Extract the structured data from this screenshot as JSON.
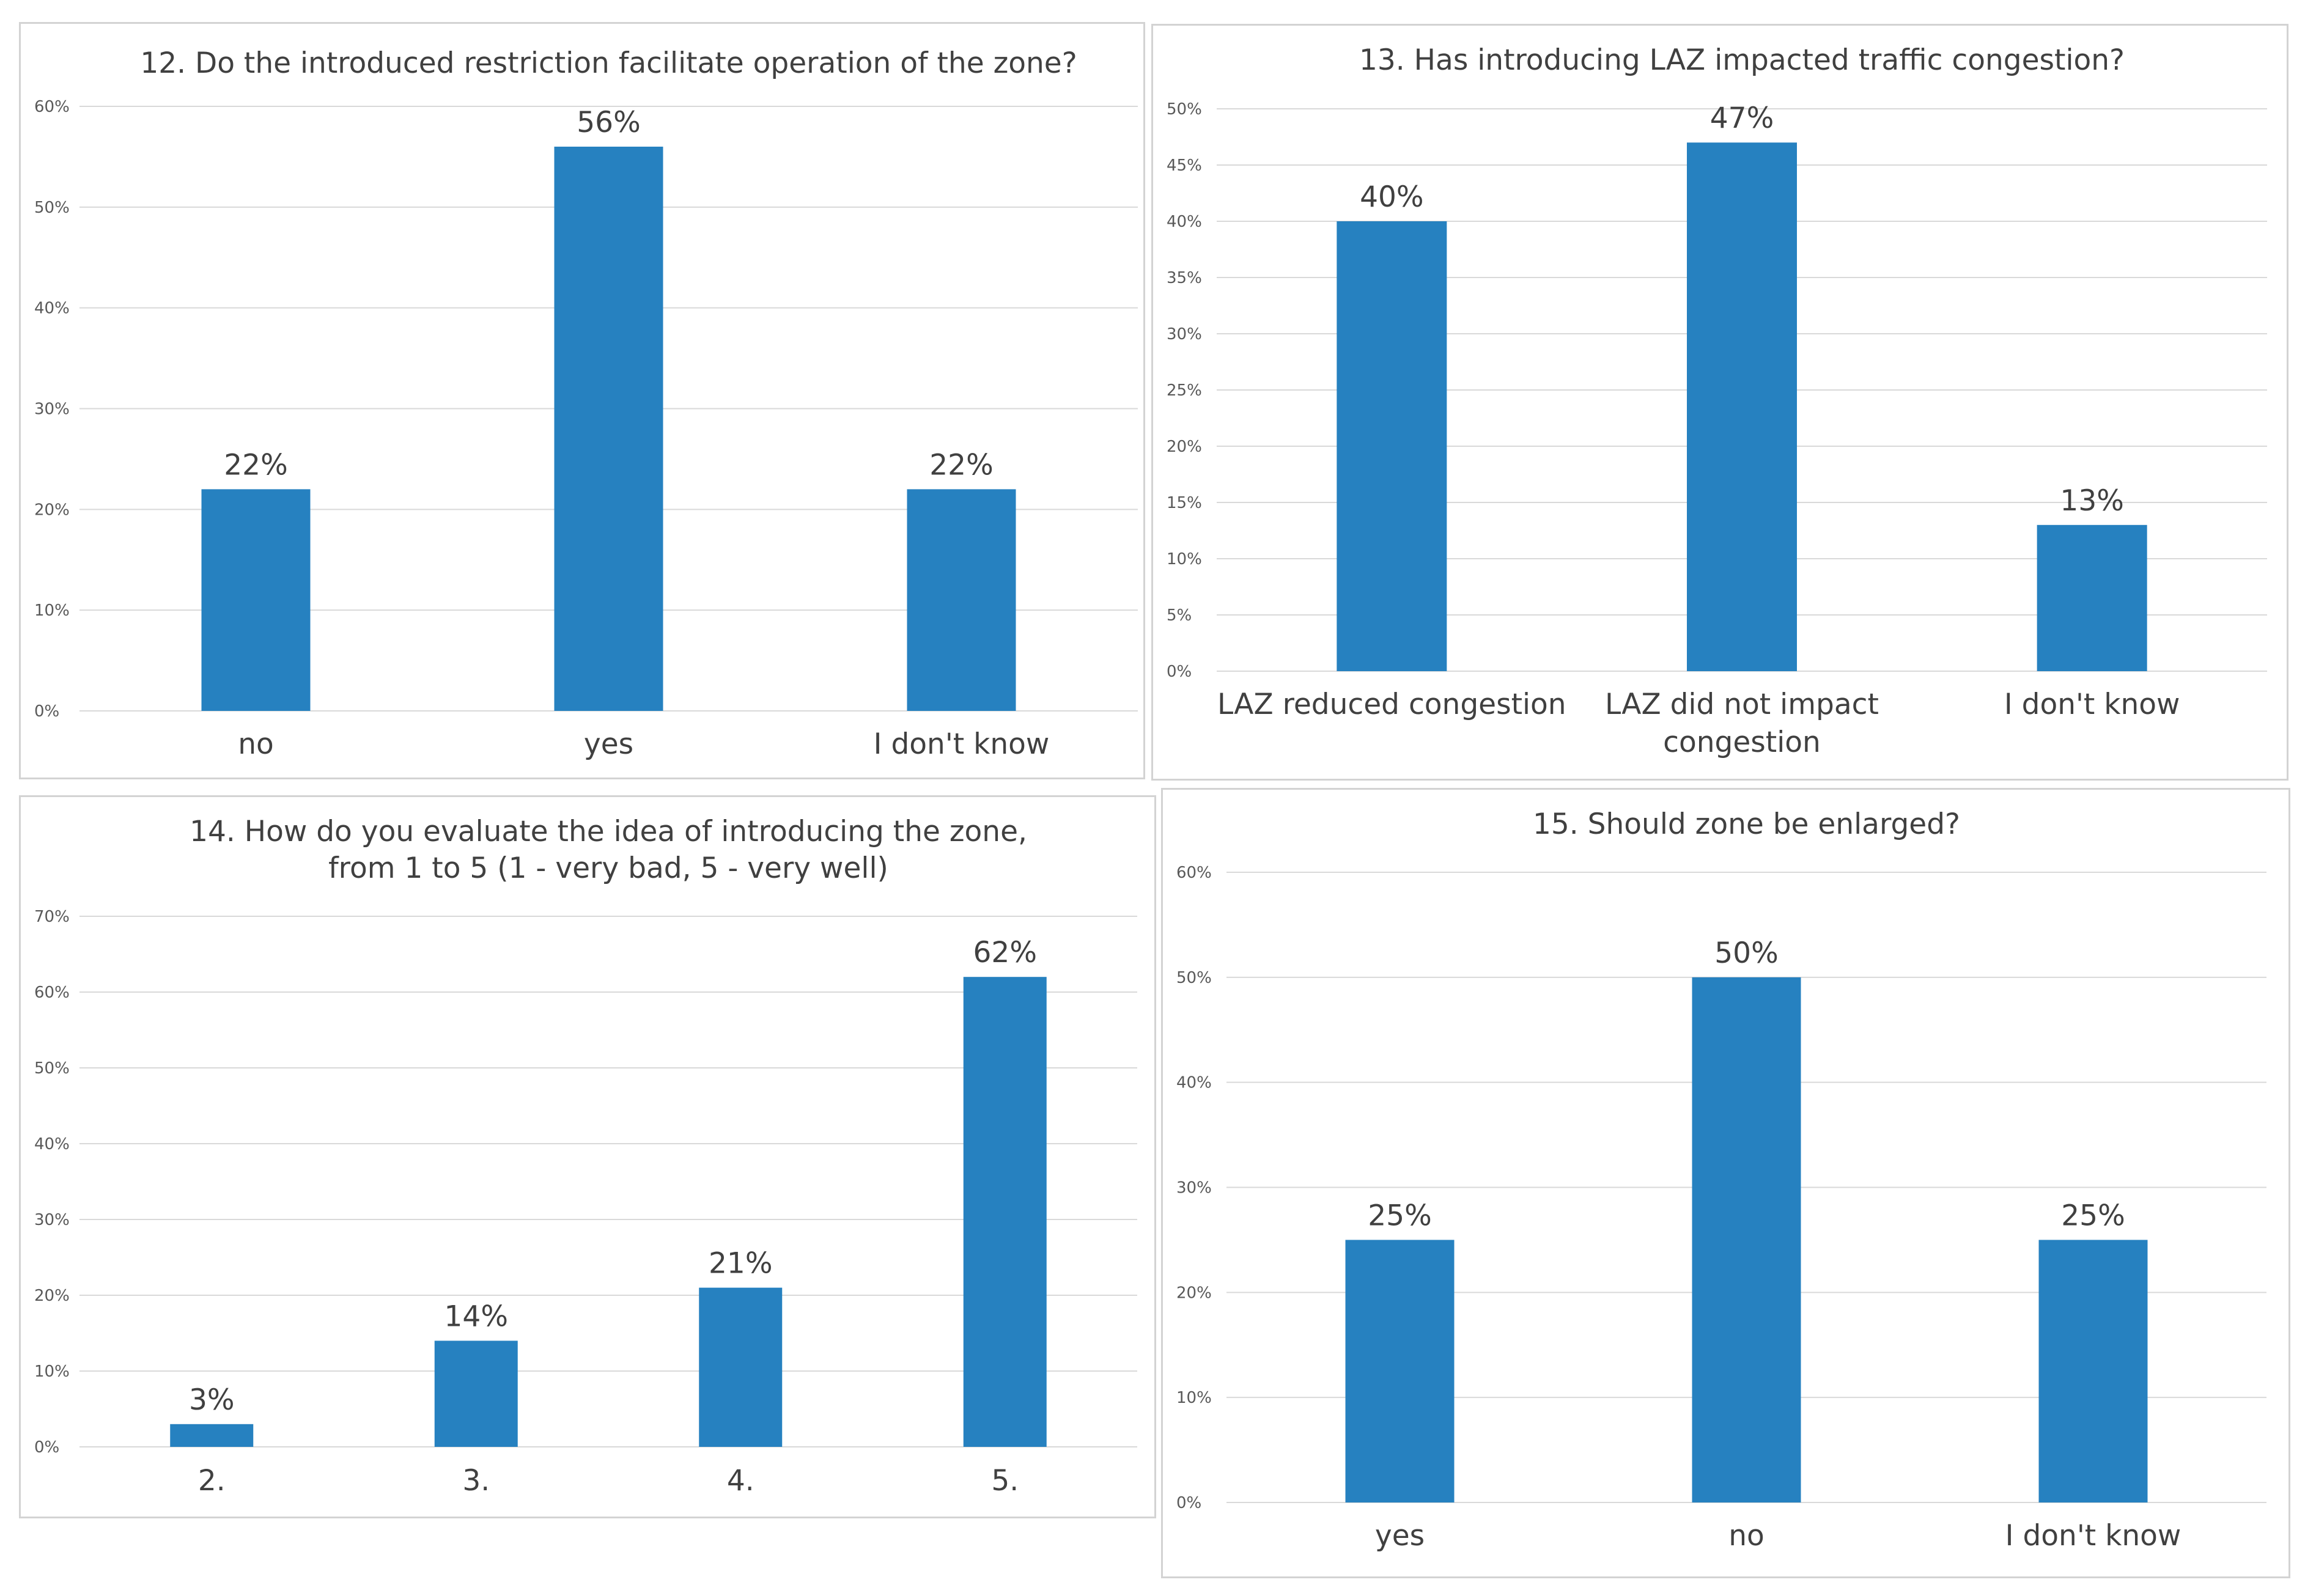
{
  "colors": {
    "bar": "#2681c0",
    "grid": "#d9d9d9",
    "text": "#404040"
  },
  "chart_data": [
    {
      "type": "bar",
      "title": [
        "12. Do the introduced restriction facilitate operation of the zone?"
      ],
      "categories": [
        [
          "no"
        ],
        [
          "yes"
        ],
        [
          "I don't know"
        ]
      ],
      "values": [
        22,
        56,
        22
      ],
      "data_labels": [
        "22%",
        "56%",
        "22%"
      ],
      "yticks": [
        0,
        10,
        20,
        30,
        40,
        50,
        60
      ],
      "ytick_labels": [
        "0%",
        "10%",
        "20%",
        "30%",
        "40%",
        "50%",
        "60%"
      ],
      "ylim": [
        0,
        60
      ],
      "grid": true,
      "legend": "none"
    },
    {
      "type": "bar",
      "title": [
        "13. Has introducing LAZ impacted traffic congestion?"
      ],
      "categories": [
        [
          "LAZ reduced congestion"
        ],
        [
          "LAZ did not impact",
          "congestion"
        ],
        [
          "I don't know"
        ]
      ],
      "values": [
        40,
        47,
        13
      ],
      "data_labels": [
        "40%",
        "47%",
        "13%"
      ],
      "yticks": [
        0,
        5,
        10,
        15,
        20,
        25,
        30,
        35,
        40,
        45,
        50
      ],
      "ytick_labels": [
        "0%",
        "5%",
        "10%",
        "15%",
        "20%",
        "25%",
        "30%",
        "35%",
        "40%",
        "45%",
        "50%"
      ],
      "ylim": [
        0,
        50
      ],
      "grid": true,
      "legend": "none"
    },
    {
      "type": "bar",
      "title": [
        "14. How do you evaluate the idea of introducing the zone,",
        "from 1 to 5  (1 - very bad, 5 - very well)"
      ],
      "categories": [
        [
          "2."
        ],
        [
          "3."
        ],
        [
          "4."
        ],
        [
          "5."
        ]
      ],
      "values": [
        3,
        14,
        21,
        62
      ],
      "data_labels": [
        "3%",
        "14%",
        "21%",
        "62%"
      ],
      "yticks": [
        0,
        10,
        20,
        30,
        40,
        50,
        60,
        70
      ],
      "ytick_labels": [
        "0%",
        "10%",
        "20%",
        "30%",
        "40%",
        "50%",
        "60%",
        "70%"
      ],
      "ylim": [
        0,
        70
      ],
      "grid": true,
      "legend": "none"
    },
    {
      "type": "bar",
      "title": [
        "15. Should zone be enlarged?"
      ],
      "categories": [
        [
          "yes"
        ],
        [
          "no"
        ],
        [
          "I don't know"
        ]
      ],
      "values": [
        25,
        50,
        25
      ],
      "data_labels": [
        "25%",
        "50%",
        "25%"
      ],
      "yticks": [
        0,
        10,
        20,
        30,
        40,
        50,
        60
      ],
      "ytick_labels": [
        "0%",
        "10%",
        "20%",
        "30%",
        "40%",
        "50%",
        "60%"
      ],
      "ylim": [
        0,
        60
      ],
      "grid": true,
      "legend": "none"
    }
  ]
}
